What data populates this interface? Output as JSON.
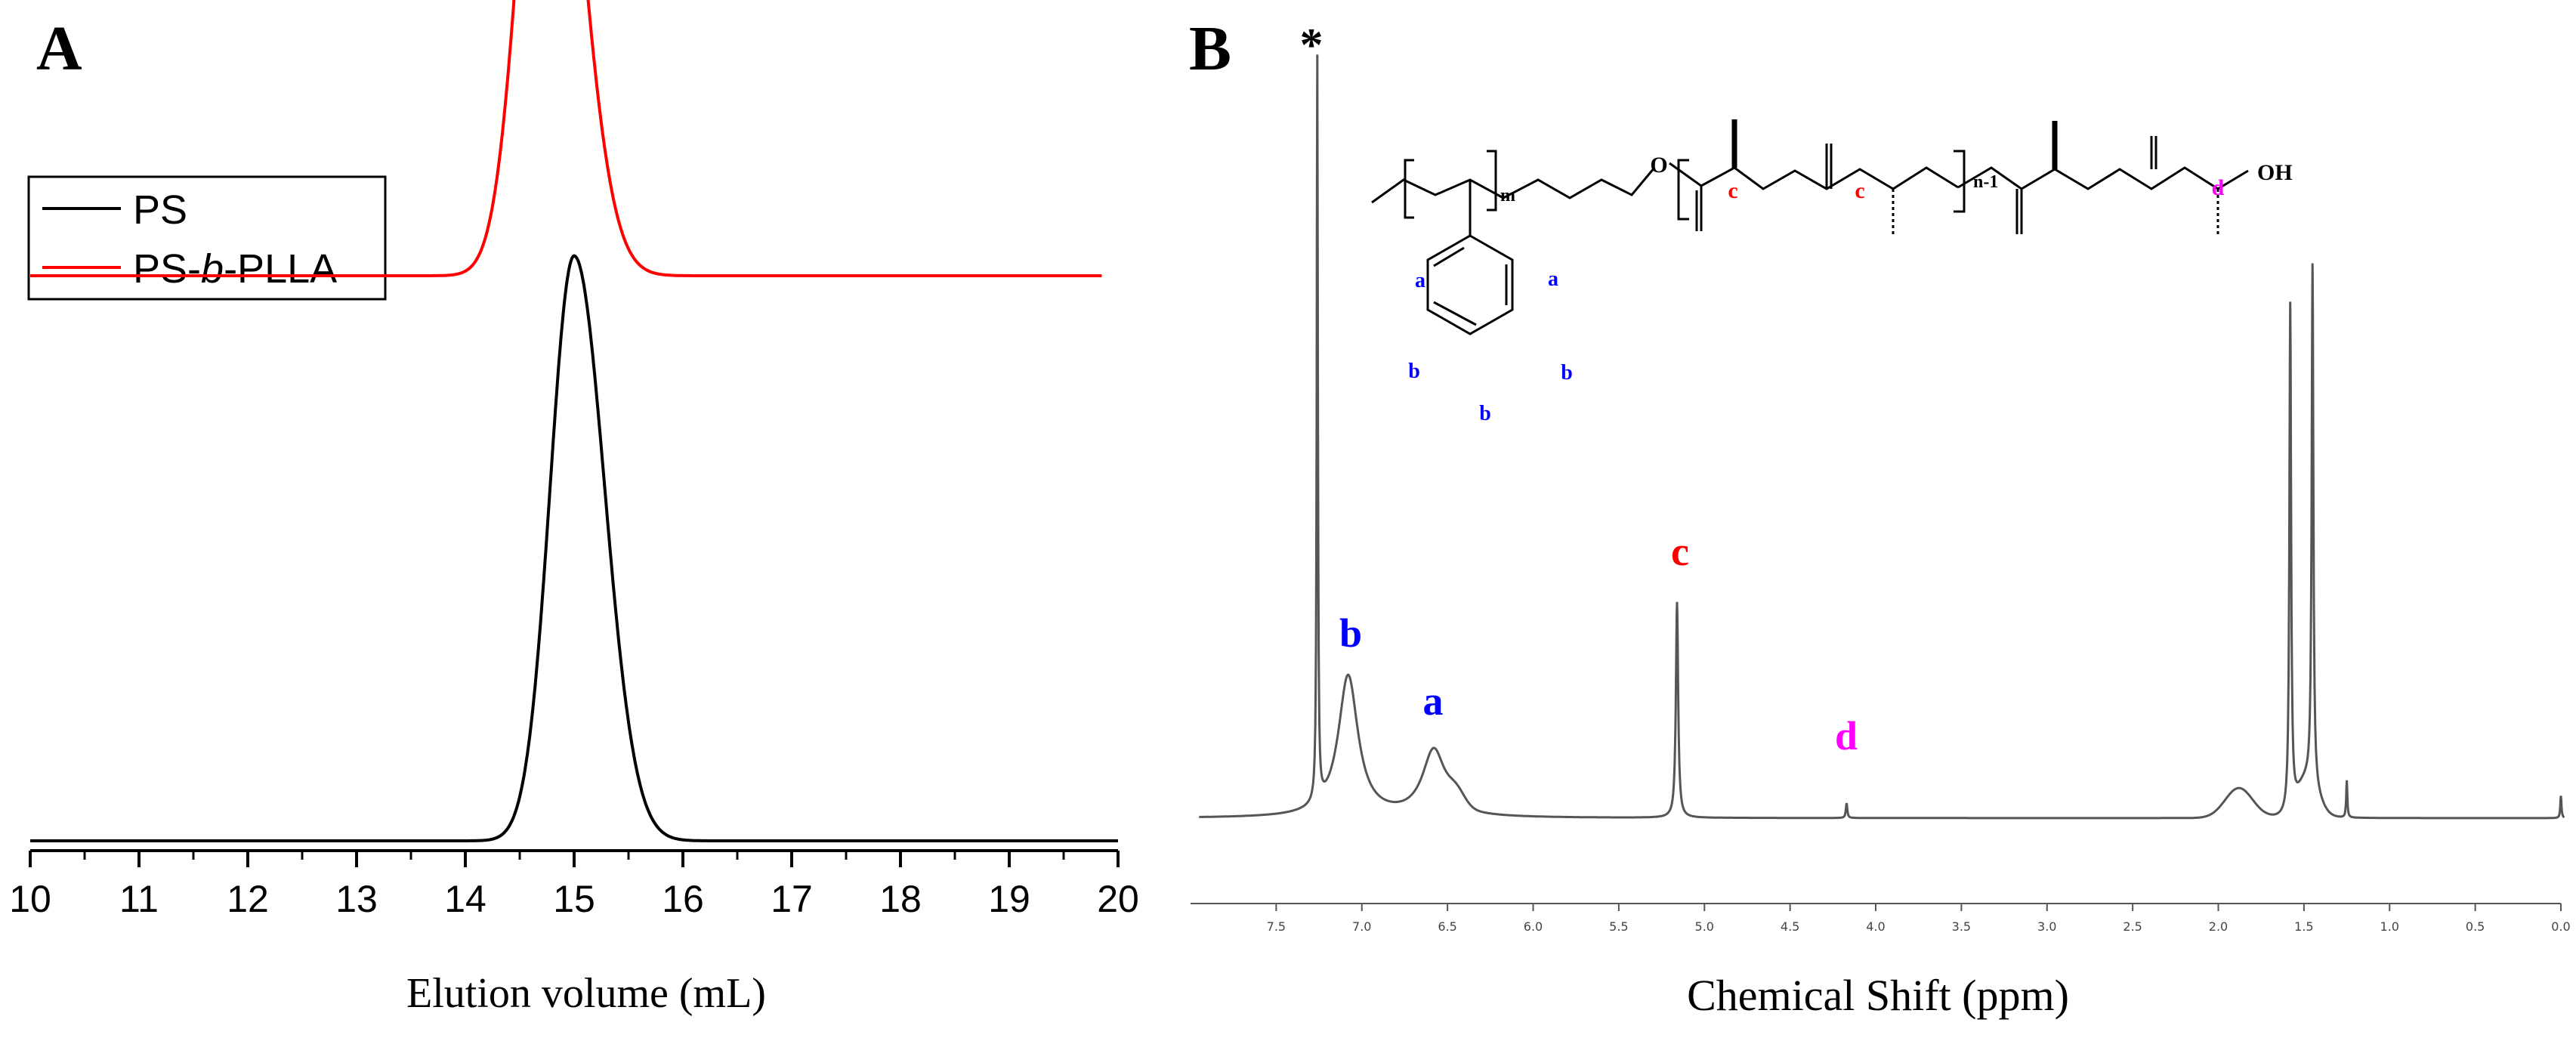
{
  "chart_data": [
    {
      "panel_label": "A",
      "type": "line",
      "xlabel": "Elution volume (mL)",
      "ylabel": "",
      "xlim": [
        10,
        20
      ],
      "x_ticks": [
        "10",
        "11",
        "12",
        "13",
        "14",
        "15",
        "16",
        "17",
        "18",
        "19",
        "20"
      ],
      "legend": {
        "placement": "top-left",
        "entries": [
          {
            "text": "PS",
            "color": "#000000"
          },
          {
            "text_parts": [
              "PS-",
              "b",
              "-PLLA"
            ],
            "color": "#ff0000"
          }
        ]
      },
      "series": [
        {
          "name": "PS",
          "color": "#000000",
          "peak_x": 15.0,
          "peak_height": 0.88,
          "baseline": 0.0,
          "x_range": [
            10,
            20
          ]
        },
        {
          "name": "PS-b-PLLA",
          "color": "#ff0000",
          "peak_x": 14.75,
          "peak_height": 0.92,
          "baseline": 0.85,
          "x_range": [
            10,
            19.85
          ]
        }
      ]
    },
    {
      "panel_label": "B",
      "type": "line",
      "xlabel": "Chemical Shift (ppm)",
      "x_reversed": true,
      "xlim": [
        8.0,
        0.0
      ],
      "x_ticks": [
        "7.5",
        "7.0",
        "6.5",
        "6.0",
        "5.5",
        "5.0",
        "4.5",
        "4.0",
        "3.5",
        "3.0",
        "2.5",
        "2.0",
        "1.5",
        "1.0",
        "0.5",
        "0.0"
      ],
      "series": [
        {
          "name": "",
          "color": "#555555"
        }
      ],
      "peaks": [
        {
          "ppm": 7.26,
          "label": "*",
          "color": "#000000",
          "height": 1.0
        },
        {
          "ppm": 7.08,
          "label": "b",
          "color": "#0000ff",
          "height": 0.19
        },
        {
          "ppm": 6.58,
          "label": "a",
          "color": "#0000ff",
          "height": 0.09
        },
        {
          "ppm": 5.16,
          "label": "c",
          "color": "#ff0000",
          "height": 0.29
        },
        {
          "ppm": 4.17,
          "label": "d",
          "color": "#ff00ff",
          "height": 0.02
        },
        {
          "ppm": 1.58,
          "label": "",
          "color": "#555555",
          "height": 0.68
        },
        {
          "ppm": 1.45,
          "label": "",
          "color": "#555555",
          "height": 0.7
        },
        {
          "ppm": 1.25,
          "label": "",
          "color": "#555555",
          "height": 0.05
        },
        {
          "ppm": 0.0,
          "label": "",
          "color": "#555555",
          "height": 0.03
        }
      ],
      "structure_labels": {
        "m": "m",
        "n1": "n-1",
        "oh": "OH",
        "o": "O",
        "a": "a",
        "b": "b",
        "c": "c",
        "d": "d"
      }
    }
  ]
}
